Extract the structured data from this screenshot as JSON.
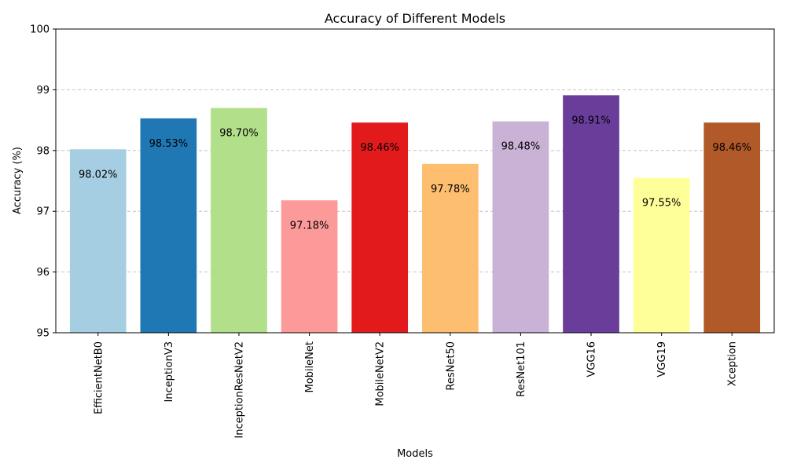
{
  "chart_data": {
    "type": "bar",
    "title": "Accuracy of Different Models",
    "xlabel": "Models",
    "ylabel": "Accuracy (%)",
    "ylim": [
      95,
      100
    ],
    "yticks": [
      95,
      96,
      97,
      98,
      99,
      100
    ],
    "grid": "y-dashed",
    "categories": [
      "EfficientNetB0",
      "InceptionV3",
      "InceptionResNetV2",
      "MobileNet",
      "MobileNetV2",
      "ResNet50",
      "ResNet101",
      "VGG16",
      "VGG19",
      "Xception"
    ],
    "values": [
      98.02,
      98.53,
      98.7,
      97.18,
      98.46,
      97.78,
      98.48,
      98.91,
      97.55,
      98.46
    ],
    "value_labels": [
      "98.02%",
      "98.53%",
      "98.70%",
      "97.18%",
      "98.46%",
      "97.78%",
      "98.48%",
      "98.91%",
      "97.55%",
      "98.46%"
    ],
    "colors": [
      "#a6cee3",
      "#1f78b4",
      "#b2df8a",
      "#fb9a99",
      "#e31a1c",
      "#fdbf6f",
      "#cab2d6",
      "#6a3d9a",
      "#ffff99",
      "#b15928"
    ]
  }
}
